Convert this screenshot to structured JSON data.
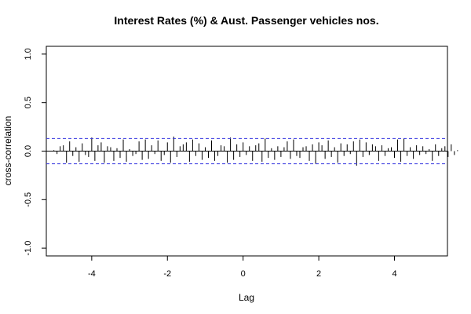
{
  "chart_data": {
    "type": "bar",
    "title": "Interest Rates (%) & Aust. Passenger vehicles nos.",
    "xlabel": "Lag",
    "ylabel": "cross-correlation",
    "xlim": [
      -5.2,
      5.4
    ],
    "ylim": [
      -1.08,
      1.08
    ],
    "x_ticks": [
      -4,
      -2,
      0,
      2,
      4
    ],
    "x_tick_labels": [
      "-4",
      "-2",
      "0",
      "2",
      "4"
    ],
    "y_ticks": [
      -1.0,
      -0.5,
      0.0,
      0.5,
      1.0
    ],
    "y_tick_labels": [
      "-1.0",
      "-0.5",
      "0.0",
      "0.5",
      "1.0"
    ],
    "confidence_bound": 0.13,
    "lag_step": 0.0833333,
    "lag_start": -5.0,
    "values": [
      0.01,
      -0.03,
      0.05,
      0.06,
      -0.12,
      0.1,
      -0.05,
      0.04,
      -0.11,
      0.08,
      -0.04,
      -0.06,
      0.14,
      -0.1,
      0.06,
      0.09,
      -0.12,
      0.05,
      0.04,
      -0.1,
      0.03,
      -0.07,
      0.12,
      -0.11,
      0.02,
      -0.05,
      -0.03,
      0.1,
      -0.09,
      0.12,
      -0.08,
      0.06,
      -0.03,
      0.11,
      -0.1,
      -0.04,
      0.09,
      -0.12,
      0.15,
      -0.06,
      0.05,
      0.07,
      0.09,
      -0.11,
      0.12,
      -0.05,
      0.08,
      -0.09,
      0.04,
      -0.07,
      0.11,
      -0.1,
      -0.05,
      0.06,
      0.05,
      -0.12,
      0.14,
      -0.09,
      0.07,
      -0.06,
      0.09,
      -0.04,
      0.05,
      -0.1,
      0.06,
      0.08,
      -0.11,
      0.13,
      -0.07,
      0.03,
      -0.09,
      0.05,
      -0.06,
      0.04,
      0.1,
      -0.08,
      0.12,
      -0.05,
      -0.07,
      0.04,
      0.05,
      -0.1,
      0.07,
      -0.13,
      0.09,
      0.06,
      -0.08,
      0.11,
      -0.06,
      0.04,
      -0.12,
      0.08,
      -0.05,
      0.07,
      -0.03,
      0.1,
      -0.15,
      0.12,
      -0.06,
      0.09,
      -0.04,
      0.07,
      0.05,
      -0.1,
      0.06,
      -0.05,
      0.03,
      0.04,
      -0.07,
      0.12,
      -0.11,
      0.13,
      -0.05,
      0.04,
      -0.08,
      0.06,
      -0.04,
      0.05,
      -0.03,
      0.02,
      -0.1,
      0.07,
      -0.05,
      0.03,
      0.05,
      -0.06,
      0.07,
      -0.04,
      0.01
    ],
    "colors": {
      "axis": "#000000",
      "bars": "#000000",
      "zero_line": "#000000",
      "bound_line": "#3a3ae0"
    }
  }
}
